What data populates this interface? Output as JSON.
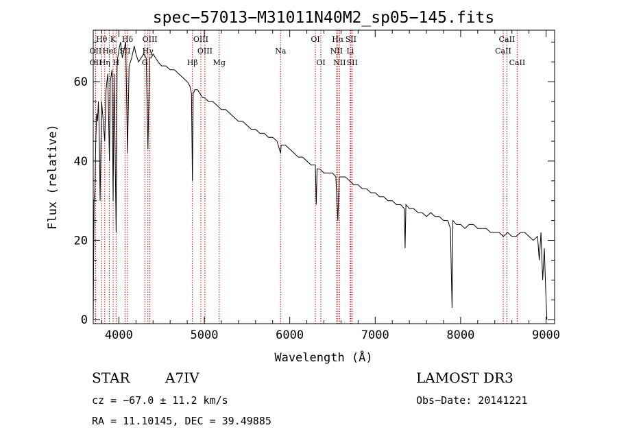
{
  "chart_data": {
    "type": "line",
    "title": "spec−57013−M31011N40M2_sp05−145.fits",
    "xlabel": "Wavelength (Å)",
    "ylabel": "Flux (relative)",
    "xlim": [
      3700,
      9100
    ],
    "ylim": [
      -1,
      73
    ],
    "x_ticks": [
      4000,
      5000,
      6000,
      7000,
      8000,
      9000
    ],
    "y_ticks": [
      0,
      20,
      40,
      60
    ],
    "series": [
      {
        "name": "spectrum",
        "x": [
          3700,
          3710,
          3720,
          3730,
          3740,
          3750,
          3760,
          3770,
          3780,
          3798,
          3810,
          3835,
          3850,
          3870,
          3889,
          3900,
          3920,
          3933,
          3945,
          3968,
          3980,
          4000,
          4020,
          4040,
          4060,
          4080,
          4101,
          4120,
          4150,
          4180,
          4200,
          4230,
          4260,
          4290,
          4320,
          4340,
          4360,
          4380,
          4400,
          4430,
          4460,
          4500,
          4550,
          4600,
          4650,
          4700,
          4750,
          4800,
          4830,
          4850,
          4861,
          4870,
          4890,
          4920,
          4950,
          4980,
          5000,
          5050,
          5100,
          5150,
          5200,
          5250,
          5300,
          5350,
          5400,
          5450,
          5500,
          5550,
          5600,
          5650,
          5700,
          5750,
          5800,
          5850,
          5893,
          5900,
          5950,
          6000,
          6050,
          6100,
          6150,
          6200,
          6250,
          6300,
          6310,
          6320,
          6350,
          6400,
          6450,
          6500,
          6540,
          6563,
          6580,
          6600,
          6650,
          6700,
          6750,
          6800,
          6850,
          6900,
          6950,
          7000,
          7050,
          7100,
          7150,
          7200,
          7250,
          7300,
          7340,
          7350,
          7360,
          7400,
          7450,
          7500,
          7550,
          7600,
          7650,
          7700,
          7750,
          7800,
          7850,
          7880,
          7900,
          7910,
          7950,
          8000,
          8050,
          8100,
          8150,
          8200,
          8250,
          8300,
          8350,
          8400,
          8450,
          8500,
          8550,
          8600,
          8650,
          8700,
          8750,
          8800,
          8850,
          8900,
          8920,
          8940,
          8960,
          8980,
          9000,
          9010
        ],
        "y": [
          0,
          30,
          33,
          45,
          52,
          50,
          55,
          48,
          30,
          55,
          52,
          45,
          58,
          62,
          40,
          60,
          63,
          30,
          62,
          22,
          65,
          68,
          70,
          66,
          68,
          70,
          42,
          64,
          66,
          69,
          67,
          65,
          66,
          67,
          66,
          43,
          66,
          66,
          67,
          66,
          65,
          64,
          64,
          63,
          63,
          62,
          61,
          60,
          59,
          57,
          35,
          57,
          58,
          58,
          57,
          56,
          56,
          55,
          55,
          54,
          53,
          53,
          52,
          51,
          50,
          50,
          49,
          48,
          48,
          47,
          47,
          46,
          46,
          45,
          42,
          44,
          44,
          43,
          42,
          41,
          41,
          40,
          39,
          39,
          29,
          38,
          38,
          37,
          37,
          37,
          36,
          25,
          36,
          36,
          36,
          35,
          34,
          34,
          33,
          33,
          32,
          32,
          31,
          31,
          30,
          30,
          29,
          29,
          28,
          18,
          29,
          28,
          28,
          27,
          27,
          26,
          27,
          26,
          26,
          25,
          25,
          23,
          3,
          25,
          24,
          24,
          23,
          24,
          24,
          23,
          23,
          23,
          22,
          22,
          22,
          21,
          22,
          21,
          21,
          22,
          22,
          21,
          20,
          21,
          15,
          22,
          10,
          18,
          5,
          0
        ]
      }
    ],
    "spectral_lines": [
      {
        "label": "Hθ",
        "wavelength": 3798,
        "row": 1
      },
      {
        "label": "OII",
        "wavelength": 3727,
        "row": 2
      },
      {
        "label": "OII",
        "wavelength": 3729,
        "row": 3
      },
      {
        "label": "K",
        "wavelength": 3933,
        "row": 1
      },
      {
        "label": "HeI",
        "wavelength": 3889,
        "row": 2
      },
      {
        "label": "Hη",
        "wavelength": 3835,
        "row": 3
      },
      {
        "label": "H",
        "wavelength": 3968,
        "row": 3
      },
      {
        "label": "SII",
        "wavelength": 4072,
        "row": 2
      },
      {
        "label": "Hδ",
        "wavelength": 4101,
        "row": 1
      },
      {
        "label": "OIII",
        "wavelength": 4363,
        "row": 1
      },
      {
        "label": "Hγ",
        "wavelength": 4340,
        "row": 2
      },
      {
        "label": "G",
        "wavelength": 4304,
        "row": 3
      },
      {
        "label": "OIII",
        "wavelength": 4959,
        "row": 1
      },
      {
        "label": "OIII",
        "wavelength": 5007,
        "row": 2
      },
      {
        "label": "Hβ",
        "wavelength": 4861,
        "row": 3
      },
      {
        "label": "Mg",
        "wavelength": 5175,
        "row": 3
      },
      {
        "label": "Na",
        "wavelength": 5893,
        "row": 2
      },
      {
        "label": "OI",
        "wavelength": 6300,
        "row": 1
      },
      {
        "label": "OI",
        "wavelength": 6364,
        "row": 3
      },
      {
        "label": "Hα",
        "wavelength": 6563,
        "row": 1
      },
      {
        "label": "SII",
        "wavelength": 6716,
        "row": 1
      },
      {
        "label": "NII",
        "wavelength": 6548,
        "row": 2
      },
      {
        "label": "Li",
        "wavelength": 6708,
        "row": 2
      },
      {
        "label": "NII",
        "wavelength": 6583,
        "row": 3
      },
      {
        "label": "SII",
        "wavelength": 6731,
        "row": 3
      },
      {
        "label": "CaII",
        "wavelength": 8542,
        "row": 1
      },
      {
        "label": "CaII",
        "wavelength": 8498,
        "row": 2
      },
      {
        "label": "CaII",
        "wavelength": 8662,
        "row": 3
      }
    ]
  },
  "info": {
    "object_class": "STAR",
    "subclass": "A7IV",
    "survey": "LAMOST DR3",
    "cz": "cz = −67.0 ± 11.2 km/s",
    "obs_date": "Obs−Date: 20141221",
    "coords": "RA =  11.10145, DEC =  39.49885"
  }
}
